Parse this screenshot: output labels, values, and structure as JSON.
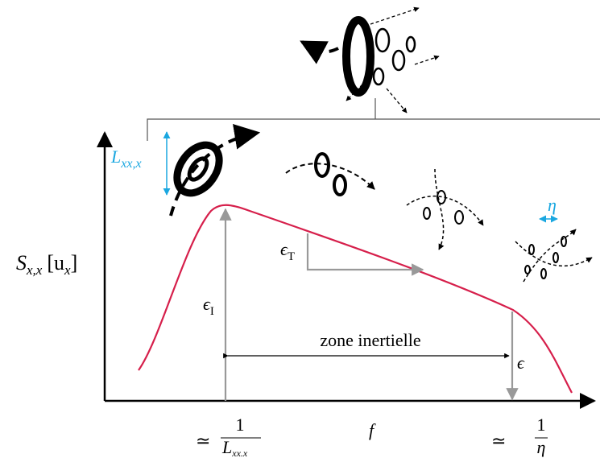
{
  "axes": {
    "y_label": {
      "symbol": "S",
      "subscript": "x,x",
      "unit": "[u",
      "unit_subscript": "x",
      "unit_close": "]"
    },
    "x_label": "f"
  },
  "x_marks": [
    {
      "prefix": "≃",
      "numerator": "1",
      "denominator": "L",
      "denominator_subscript": "xx.x"
    },
    {
      "prefix": "≃",
      "numerator": "1",
      "denominator": "η"
    }
  ],
  "annotations": {
    "zone": "zone inertielle",
    "epsilon_I": {
      "symbol": "ϵ",
      "subscript": "I"
    },
    "epsilon_T": {
      "symbol": "ϵ",
      "subscript": "T"
    },
    "epsilon": "ϵ",
    "integral_scale": {
      "symbol": "L",
      "subscript": "xx,x"
    },
    "kolmogorov_scale": "η"
  }
}
